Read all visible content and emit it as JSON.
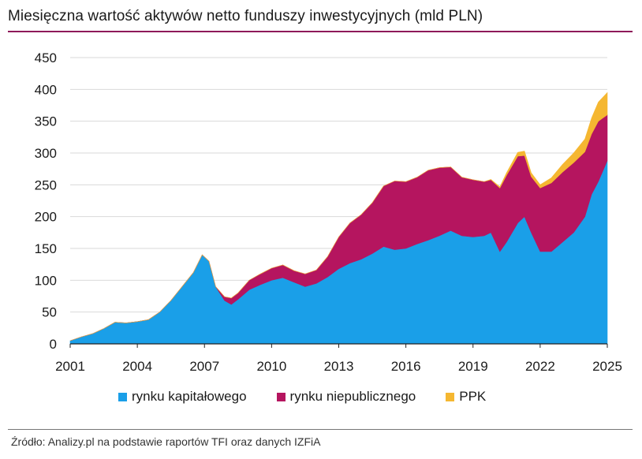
{
  "title": "Miesięczna wartość aktywów netto funduszy inwestycyjnych (mld PLN)",
  "source": "Źródło: Analizy.pl na podstawie raportów TFI oraz danych IZFiA",
  "chart_data": {
    "type": "area",
    "stacked": true,
    "title": "Miesięczna wartość aktywów netto funduszy inwestycyjnych (mld PLN)",
    "xlabel": "",
    "ylabel": "",
    "xlim": [
      2001,
      2025
    ],
    "ylim": [
      0,
      450
    ],
    "y_ticks": [
      0,
      50,
      100,
      150,
      200,
      250,
      300,
      350,
      400,
      450
    ],
    "x_ticks": [
      2001,
      2004,
      2007,
      2010,
      2013,
      2016,
      2019,
      2022,
      2025
    ],
    "grid": "horizontal",
    "legend_position": "bottom",
    "x": [
      2001.0,
      2001.5,
      2002.0,
      2002.5,
      2003.0,
      2003.5,
      2004.0,
      2004.5,
      2005.0,
      2005.5,
      2006.0,
      2006.5,
      2006.9,
      2007.2,
      2007.5,
      2007.9,
      2008.2,
      2008.5,
      2009.0,
      2009.5,
      2010.0,
      2010.5,
      2011.0,
      2011.5,
      2012.0,
      2012.5,
      2013.0,
      2013.5,
      2014.0,
      2014.5,
      2015.0,
      2015.5,
      2016.0,
      2016.5,
      2017.0,
      2017.5,
      2018.0,
      2018.5,
      2019.0,
      2019.5,
      2019.8,
      2020.2,
      2020.5,
      2021.0,
      2021.3,
      2021.6,
      2022.0,
      2022.5,
      2023.0,
      2023.5,
      2024.0,
      2024.3,
      2024.6,
      2025.0
    ],
    "series": [
      {
        "name": "rynku kapitałowego",
        "color": "#1a9fe8",
        "values": [
          5,
          11,
          16,
          24,
          34,
          33,
          35,
          38,
          50,
          68,
          90,
          112,
          140,
          130,
          90,
          68,
          62,
          70,
          85,
          93,
          100,
          104,
          97,
          90,
          95,
          105,
          118,
          127,
          133,
          142,
          153,
          148,
          150,
          157,
          163,
          170,
          178,
          170,
          168,
          170,
          175,
          145,
          160,
          190,
          200,
          175,
          145,
          145,
          160,
          175,
          200,
          235,
          255,
          288
        ]
      },
      {
        "name": "rynku niepublicznego",
        "color": "#b5155f",
        "values": [
          0,
          0,
          0,
          0,
          0,
          0,
          0,
          0,
          0,
          0,
          0,
          0,
          0,
          0,
          0,
          6,
          10,
          10,
          15,
          17,
          19,
          20,
          18,
          20,
          21,
          32,
          50,
          63,
          70,
          80,
          95,
          108,
          105,
          105,
          110,
          107,
          100,
          92,
          90,
          85,
          83,
          100,
          105,
          105,
          96,
          88,
          100,
          108,
          110,
          110,
          102,
          95,
          95,
          72
        ]
      },
      {
        "name": "PPK",
        "color": "#f5b731",
        "values": [
          0,
          0,
          0,
          0,
          0,
          0,
          0,
          0,
          0,
          0,
          0,
          0,
          0,
          0,
          0,
          0,
          0,
          0,
          0,
          0,
          0,
          0,
          0,
          0,
          0,
          0,
          0,
          0,
          0,
          0,
          0,
          0,
          0,
          0,
          0,
          0,
          0,
          0,
          0,
          0,
          0.5,
          2,
          4,
          6,
          7,
          6,
          5,
          8,
          12,
          15,
          20,
          25,
          30,
          35
        ]
      }
    ]
  }
}
